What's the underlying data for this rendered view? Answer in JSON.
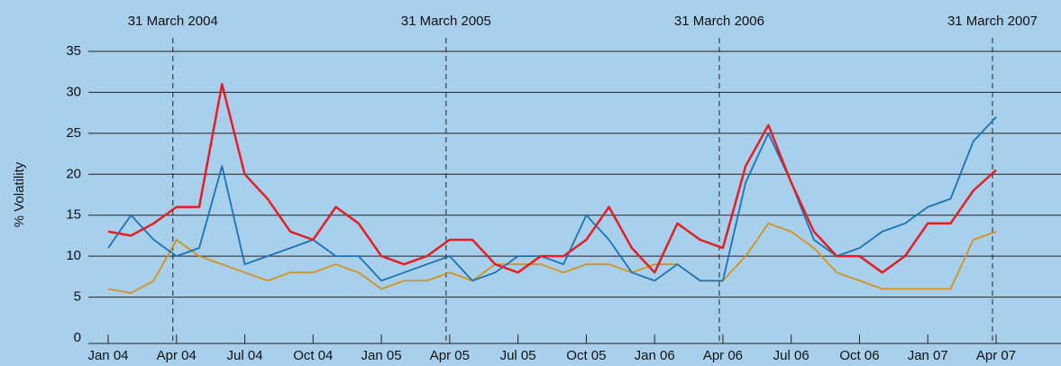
{
  "chart_data": {
    "type": "line",
    "y_label": "% Volatility",
    "categories": [
      "Jan 04",
      null,
      null,
      "Apr 04",
      null,
      null,
      "Jul 04",
      null,
      null,
      "Oct 04",
      null,
      null,
      "Jan 05",
      null,
      null,
      "Apr 05",
      null,
      null,
      "Jul 05",
      null,
      null,
      "Oct 05",
      null,
      null,
      "Jan 06",
      null,
      null,
      "Apr 06",
      null,
      null,
      "Jul 06",
      null,
      null,
      "Oct 06",
      null,
      null,
      "Jan 07",
      null,
      null,
      "Apr 07"
    ],
    "series": [
      {
        "color": "#e31e24",
        "values": [
          13,
          12.5,
          14,
          16,
          16,
          31,
          20,
          17,
          13,
          12,
          16,
          14,
          10,
          9,
          10,
          12,
          12,
          9,
          8,
          10,
          10,
          12,
          16,
          11,
          8,
          14,
          12,
          11,
          21,
          26,
          19,
          13,
          10,
          10,
          8,
          10,
          14,
          14,
          18,
          20.5
        ]
      },
      {
        "color": "#1a73b5",
        "values": [
          11,
          15,
          12,
          10,
          11,
          21,
          9,
          10,
          11,
          12,
          10,
          10,
          7,
          8,
          9,
          10,
          7,
          8,
          10,
          10,
          9,
          15,
          12,
          8,
          7,
          9,
          7,
          7,
          19,
          25,
          19,
          12,
          10,
          11,
          13,
          14,
          16,
          17,
          24,
          27
        ]
      },
      {
        "color": "#d4911e",
        "values": [
          6,
          5.5,
          7,
          12,
          10,
          9,
          8,
          7,
          8,
          8,
          9,
          8,
          6,
          7,
          7,
          8,
          7,
          9,
          9,
          9,
          8,
          9,
          9,
          8,
          9,
          9,
          7,
          7,
          10,
          14,
          13,
          11,
          8,
          7,
          6,
          6,
          6,
          6,
          12,
          13
        ]
      }
    ],
    "annotations": [
      {
        "label": "31 March 2004",
        "x": "Apr 04"
      },
      {
        "label": "31 March 2005",
        "x": "Apr 05"
      },
      {
        "label": "31 March 2006",
        "x": "Apr 06"
      },
      {
        "label": "31 March 2007",
        "x": "Apr 07"
      }
    ],
    "ylim": [
      0,
      35
    ],
    "yticks": [
      0,
      5,
      10,
      15,
      20,
      25,
      30,
      35
    ],
    "grid": true
  }
}
